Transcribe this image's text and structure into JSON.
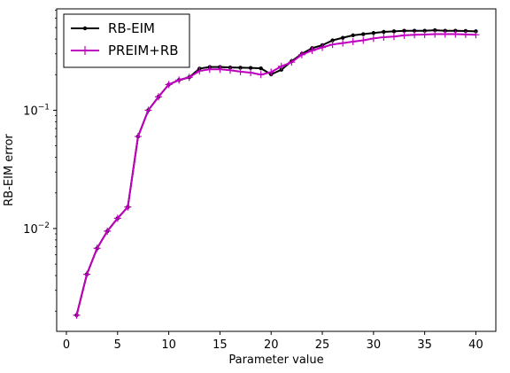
{
  "chart_data": {
    "type": "line",
    "title": "",
    "xlabel": "Parameter value",
    "ylabel": "RB-EIM error",
    "xlim": [
      -0.95,
      41.95
    ],
    "ylim": [
      0.00135,
      0.72
    ],
    "yscale": "log",
    "xticks": [
      0,
      5,
      10,
      15,
      20,
      25,
      30,
      35,
      40
    ],
    "xtick_labels": [
      "0",
      "5",
      "10",
      "15",
      "20",
      "25",
      "30",
      "35",
      "40"
    ],
    "yticks": [
      0.01,
      0.1
    ],
    "ytick_base": "10",
    "ytick_exponents": [
      "−2",
      "−1"
    ],
    "grid": false,
    "legend_position": "upper-left",
    "x": [
      1,
      2,
      3,
      4,
      5,
      6,
      7,
      8,
      9,
      10,
      11,
      12,
      13,
      14,
      15,
      16,
      17,
      18,
      19,
      20,
      21,
      22,
      23,
      24,
      25,
      26,
      27,
      28,
      29,
      30,
      31,
      32,
      33,
      34,
      35,
      36,
      37,
      38,
      39,
      40
    ],
    "series": [
      {
        "name": "RB-EIM",
        "color": "#000000",
        "marker": "dot",
        "values": [
          0.00185,
          0.0041,
          0.0068,
          0.0095,
          0.0122,
          0.0152,
          0.06,
          0.1,
          0.13,
          0.165,
          0.18,
          0.19,
          0.225,
          0.232,
          0.232,
          0.23,
          0.229,
          0.228,
          0.226,
          0.201,
          0.22,
          0.26,
          0.3,
          0.335,
          0.355,
          0.39,
          0.41,
          0.43,
          0.44,
          0.45,
          0.46,
          0.465,
          0.47,
          0.47,
          0.47,
          0.475,
          0.47,
          0.47,
          0.468,
          0.465
        ]
      },
      {
        "name": "PREIM+RB",
        "color": "#bf00bf",
        "marker": "plus",
        "values": [
          0.00185,
          0.0041,
          0.0068,
          0.0095,
          0.0122,
          0.0152,
          0.06,
          0.1,
          0.13,
          0.165,
          0.18,
          0.19,
          0.215,
          0.222,
          0.222,
          0.218,
          0.212,
          0.208,
          0.2,
          0.21,
          0.235,
          0.255,
          0.295,
          0.32,
          0.34,
          0.36,
          0.37,
          0.38,
          0.39,
          0.405,
          0.415,
          0.42,
          0.43,
          0.435,
          0.437,
          0.44,
          0.44,
          0.44,
          0.438,
          0.435
        ]
      }
    ]
  }
}
